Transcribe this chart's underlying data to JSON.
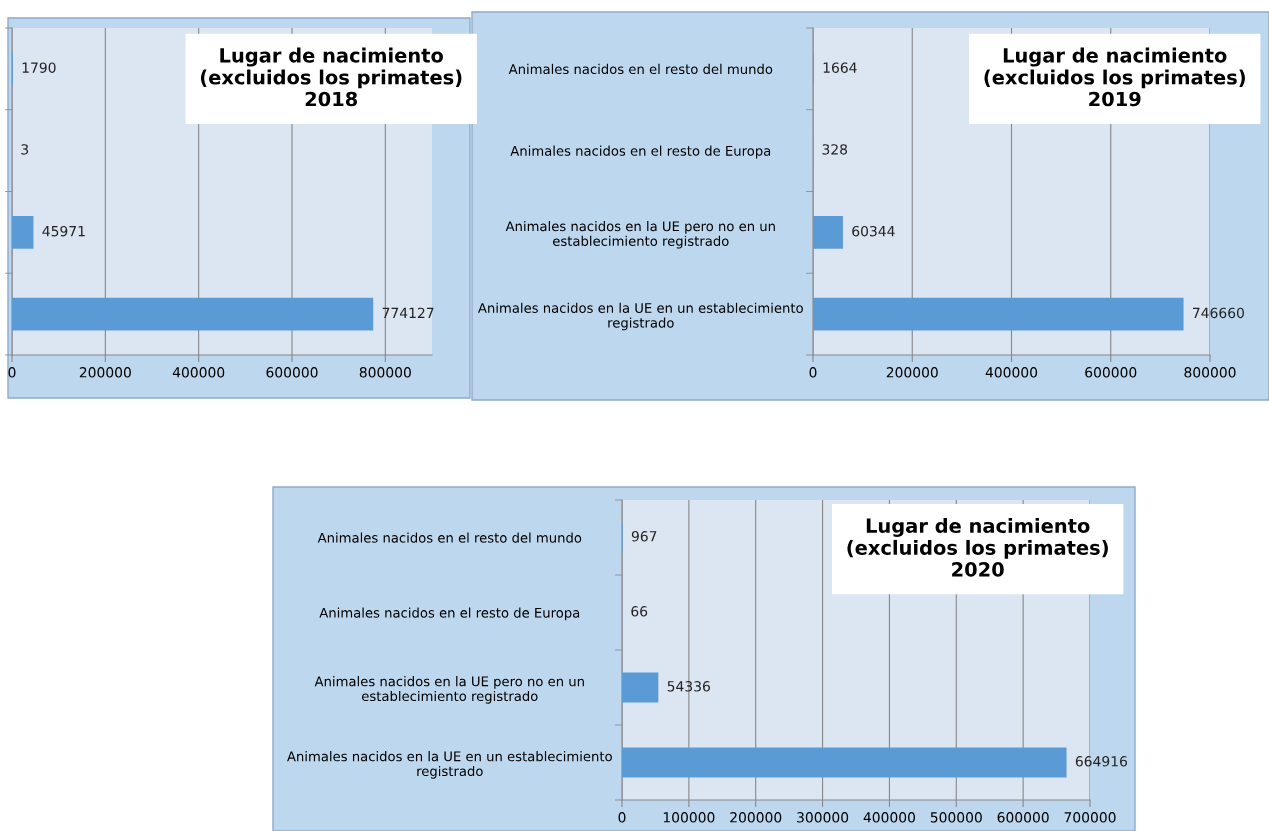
{
  "chart_data": [
    {
      "type": "bar",
      "orientation": "horizontal",
      "title": "Lugar de nacimiento\n(excluidos los primates)\n2018",
      "categories": [
        null,
        null,
        null,
        null
      ],
      "values": [
        1790,
        3,
        45971,
        774127
      ],
      "color": "#5b9bd5",
      "xlim": [
        0,
        900000
      ],
      "xticks": [
        0,
        200000,
        400000,
        600000,
        800000
      ],
      "grid": "x",
      "data_labels": true,
      "tick_labels": "x"
    },
    {
      "type": "bar",
      "orientation": "horizontal",
      "title": "Lugar de nacimiento\n(excluidos los primates)\n2019",
      "categories": [
        "Animales nacidos en el resto del mundo",
        "Animales nacidos en el resto de Europa",
        "Animales nacidos en la UE pero no en un\nestablecimiento registrado",
        "Animales nacidos en la UE en un establecimiento\nregistrado"
      ],
      "values": [
        1664,
        328,
        60344,
        746660
      ],
      "color": "#5b9bd5",
      "xlim": [
        0,
        800000
      ],
      "xticks": [
        0,
        200000,
        400000,
        600000,
        800000
      ],
      "grid": "x",
      "data_labels": true
    },
    {
      "type": "bar",
      "orientation": "horizontal",
      "title": "Lugar de nacimiento\n(excluidos los primates)\n2020",
      "categories": [
        "Animales nacidos en el resto del mundo",
        "Animales nacidos en el resto de Europa",
        "Animales nacidos en la UE pero no en un\nestablecimiento registrado",
        "Animales nacidos en la UE en un establecimiento\nregistrado"
      ],
      "values": [
        967,
        66,
        54336,
        664916
      ],
      "color": "#5b9bd5",
      "xlim": [
        0,
        700000
      ],
      "xticks": [
        0,
        100000,
        200000,
        300000,
        400000,
        500000,
        600000,
        700000
      ],
      "grid": "x",
      "data_labels": true
    }
  ]
}
